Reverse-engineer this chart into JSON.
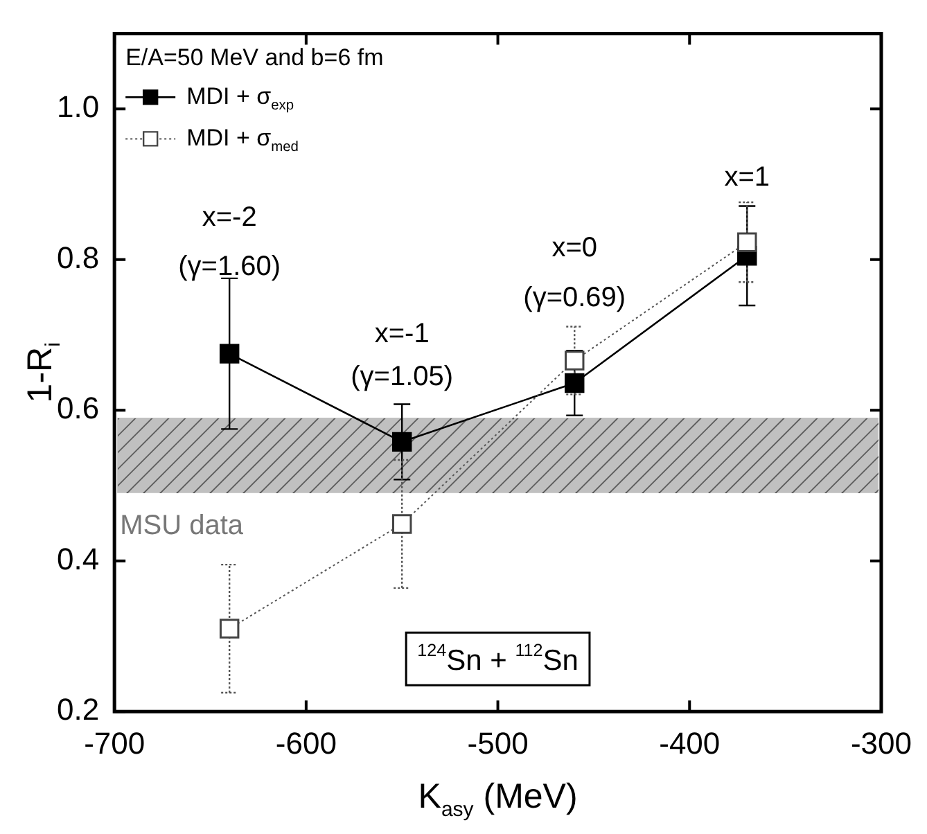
{
  "chart_data": {
    "type": "line",
    "xlabel": "K$_{asy}$ (MeV)",
    "ylabel": "1-R$_{i}$",
    "legend_title": "E/A=50 MeV and b=6 fm",
    "x": [
      -640,
      -550,
      -460,
      -370
    ],
    "series": [
      {
        "name": "MDI + σ$_{exp}$",
        "color": "#000000",
        "line_style": "solid",
        "values": [
          0.675,
          0.558,
          0.636,
          0.805
        ],
        "errors": [
          0.1,
          0.05,
          0.043,
          0.066
        ]
      },
      {
        "name": "MDI + σ$_{med}$",
        "color": "#ffffff",
        "line_style": "dotted",
        "values": [
          0.31,
          0.449,
          0.666,
          0.823
        ],
        "errors": [
          0.085,
          0.085,
          0.045,
          0.053
        ]
      }
    ],
    "marker": "square",
    "legend": "top left",
    "xlim": [
      -700,
      -300
    ],
    "xticks": [
      -700,
      -600,
      -500,
      -400,
      -300
    ],
    "ylim": [
      0.2,
      1.1
    ],
    "yticks": [
      0.2,
      0.4,
      0.6,
      0.8,
      {
        "value": 1,
        "label": "1.0"
      }
    ],
    "bands": [
      {
        "axis": "y",
        "from": 0.49,
        "to": 0.59,
        "label": "MSU data",
        "color": "#c0c0c0"
      }
    ],
    "annotations": [
      "x=-2",
      "(γ=1.60)",
      "x=-1",
      "(γ=1.05)",
      "x=0",
      "(γ=0.69)",
      "x=1",
      "$^{124}$Sn + $^{112}$Sn"
    ]
  }
}
